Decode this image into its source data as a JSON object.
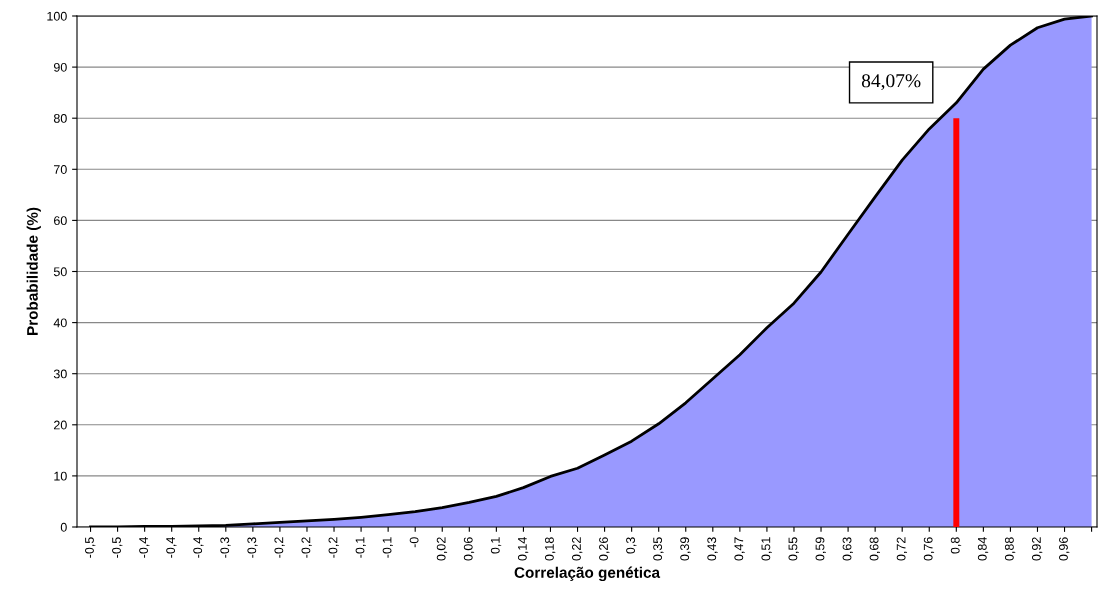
{
  "chart_data": {
    "type": "area",
    "xlabel": "Correlação genética",
    "ylabel": "Probabilidade (%)",
    "categories": [
      "-0,5",
      "-0,5",
      "-0,4",
      "-0,4",
      "-0,4",
      "-0,3",
      "-0,3",
      "-0,2",
      "-0,2",
      "-0,2",
      "-0,1",
      "-0,1",
      "-0",
      "0,02",
      "0,06",
      "0,1",
      "0,14",
      "0,18",
      "0,22",
      "0,26",
      "0,3",
      "0,35",
      "0,39",
      "0,43",
      "0,47",
      "0,51",
      "0,55",
      "0,59",
      "0,63",
      "0,68",
      "0,72",
      "0,76",
      "0,8",
      "0,84",
      "0,88",
      "0,92",
      "0,96",
      null
    ],
    "series": [
      {
        "color": "#9999ff",
        "values": [
          0,
          0,
          0.1,
          0.1,
          0.2,
          0.3,
          0.6,
          0.9,
          1.2,
          1.5,
          1.9,
          2.4,
          3.0,
          3.8,
          4.8,
          6.0,
          7.7,
          9.9,
          11.5,
          14.1,
          16.8,
          20.2,
          24.3,
          29,
          33.7,
          39,
          43.8,
          49.9,
          57.3,
          64.6,
          71.8,
          77.9,
          83,
          89.6,
          94.3,
          97.7,
          99.4,
          100
        ]
      },
      {
        "type": "bar",
        "color": "#ff0000",
        "values": [
          null,
          null,
          null,
          null,
          null,
          null,
          null,
          null,
          null,
          null,
          null,
          null,
          null,
          null,
          null,
          null,
          null,
          null,
          null,
          null,
          null,
          null,
          null,
          null,
          null,
          null,
          null,
          null,
          null,
          null,
          null,
          null,
          80,
          null,
          null,
          null,
          null,
          null
        ]
      }
    ],
    "annotations": [
      "84,07%"
    ],
    "ylim": [
      0,
      100
    ],
    "yticks": [
      0,
      10,
      20,
      30,
      40,
      50,
      60,
      70,
      80,
      90,
      100
    ],
    "grid": "y",
    "legend": false
  }
}
